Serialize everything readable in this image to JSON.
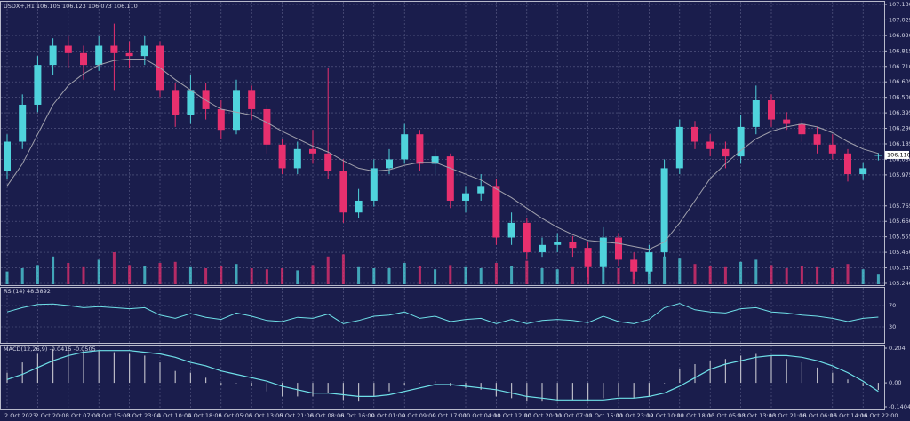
{
  "chart_data": {
    "type": "candlestick",
    "title": "USDX+,H1",
    "header_values": [
      "106.105",
      "106.123",
      "106.073",
      "106.110"
    ],
    "categories": [
      "2 Oct 2023",
      null,
      "2 Oct 20:00",
      null,
      "3 Oct 07:00",
      null,
      "3 Oct 15:00",
      null,
      "3 Oct 23:00",
      null,
      "4 Oct 10:00",
      null,
      "4 Oct 18:00",
      null,
      "5 Oct 05:00",
      null,
      "5 Oct 13:00",
      null,
      "5 Oct 21:00",
      null,
      "6 Oct 08:00",
      null,
      "6 Oct 16:00",
      null,
      "9 Oct 01:00",
      null,
      "9 Oct 09:00",
      null,
      "9 Oct 17:00",
      null,
      "10 Oct 04:00",
      null,
      "10 Oct 12:00",
      null,
      "10 Oct 20:00",
      null,
      "11 Oct 07:00",
      null,
      "11 Oct 15:00",
      null,
      "11 Oct 23:00",
      null,
      "12 Oct 10:00",
      null,
      "12 Oct 18:00",
      null,
      "13 Oct 05:00",
      null,
      "13 Oct 13:00",
      null,
      "13 Oct 21:00",
      null,
      "16 Oct 06:00",
      null,
      "16 Oct 14:00",
      null,
      "16 Oct 22:00",
      null
    ],
    "open": [
      106.0,
      106.2,
      106.45,
      106.72,
      106.85,
      106.8,
      106.72,
      106.85,
      106.8,
      106.78,
      106.85,
      106.55,
      106.38,
      106.55,
      106.42,
      106.28,
      106.55,
      106.42,
      106.18,
      106.02,
      106.15,
      106.12,
      106.0,
      105.72,
      105.8,
      106.02,
      106.08,
      106.25,
      106.05,
      106.1,
      105.8,
      105.85,
      105.9,
      105.55,
      105.65,
      105.45,
      105.5,
      105.52,
      105.48,
      105.35,
      105.55,
      105.4,
      105.32,
      105.45,
      106.02,
      106.3,
      106.2,
      106.15,
      106.1,
      106.3,
      106.48,
      106.35,
      106.32,
      106.25,
      106.18,
      106.12,
      105.98,
      106.105
    ],
    "high": [
      106.25,
      106.52,
      106.78,
      106.9,
      106.92,
      106.85,
      106.92,
      107.0,
      106.88,
      106.92,
      106.88,
      106.6,
      106.65,
      106.6,
      106.48,
      106.62,
      106.58,
      106.45,
      106.22,
      106.2,
      106.28,
      106.7,
      106.08,
      105.88,
      106.08,
      106.15,
      106.32,
      106.28,
      106.15,
      106.12,
      105.9,
      105.98,
      105.95,
      105.72,
      105.68,
      105.55,
      105.58,
      105.56,
      105.52,
      105.62,
      105.58,
      105.45,
      105.5,
      106.08,
      106.35,
      106.34,
      106.25,
      106.2,
      106.38,
      106.58,
      106.52,
      106.4,
      106.35,
      106.3,
      106.25,
      106.15,
      106.06,
      106.123
    ],
    "low": [
      105.95,
      106.15,
      106.4,
      106.65,
      106.7,
      106.62,
      106.68,
      106.55,
      106.7,
      106.72,
      106.5,
      106.3,
      106.32,
      106.35,
      106.22,
      106.25,
      106.35,
      106.12,
      105.98,
      105.98,
      106.05,
      105.95,
      105.65,
      105.68,
      105.76,
      105.98,
      106.05,
      106.0,
      105.98,
      105.75,
      105.72,
      105.8,
      105.5,
      105.5,
      105.4,
      105.42,
      105.45,
      105.42,
      105.28,
      105.32,
      105.36,
      105.27,
      105.3,
      105.42,
      105.98,
      106.15,
      106.1,
      106.02,
      106.05,
      106.25,
      106.3,
      106.28,
      106.2,
      106.12,
      106.08,
      105.93,
      105.94,
      106.073
    ],
    "close": [
      106.2,
      106.45,
      106.72,
      106.85,
      106.8,
      106.72,
      106.85,
      106.8,
      106.78,
      106.85,
      106.55,
      106.38,
      106.55,
      106.42,
      106.28,
      106.55,
      106.42,
      106.18,
      106.02,
      106.15,
      106.12,
      106.0,
      105.72,
      105.8,
      106.02,
      106.08,
      106.25,
      106.05,
      106.1,
      105.8,
      105.85,
      105.9,
      105.55,
      105.65,
      105.45,
      105.5,
      105.52,
      105.48,
      105.35,
      105.55,
      105.4,
      105.32,
      105.45,
      106.02,
      106.3,
      106.2,
      106.15,
      106.1,
      106.3,
      106.48,
      106.35,
      106.32,
      106.25,
      106.18,
      106.12,
      105.98,
      106.02,
      106.11
    ],
    "ma": [
      105.9,
      106.05,
      106.25,
      106.45,
      106.58,
      106.66,
      106.72,
      106.75,
      106.76,
      106.76,
      106.7,
      106.62,
      106.55,
      106.48,
      106.42,
      106.4,
      106.38,
      106.33,
      106.27,
      106.22,
      106.17,
      106.13,
      106.07,
      106.02,
      106.0,
      106.01,
      106.04,
      106.06,
      106.06,
      106.02,
      105.98,
      105.94,
      105.88,
      105.82,
      105.75,
      105.68,
      105.62,
      105.57,
      105.53,
      105.52,
      105.51,
      105.49,
      105.47,
      105.52,
      105.65,
      105.8,
      105.95,
      106.05,
      106.14,
      106.22,
      106.27,
      106.3,
      106.32,
      106.3,
      106.26,
      106.2,
      106.15,
      106.12
    ],
    "volume": [
      120,
      150,
      180,
      260,
      200,
      160,
      230,
      300,
      180,
      170,
      200,
      210,
      160,
      150,
      170,
      190,
      150,
      140,
      150,
      130,
      180,
      260,
      280,
      160,
      150,
      150,
      200,
      170,
      140,
      180,
      160,
      150,
      200,
      170,
      220,
      150,
      140,
      160,
      190,
      210,
      150,
      170,
      200,
      260,
      240,
      190,
      170,
      160,
      210,
      230,
      180,
      150,
      170,
      160,
      150,
      190,
      140,
      90
    ],
    "colors": {
      "up": "#4fd3dc",
      "down": "#e8306e",
      "ma": "#a0a0ac",
      "background": "#1a1d4c",
      "grid": "#5c6088",
      "signal": "#6fe0e8",
      "histogram": "#b8b8c4"
    },
    "ylim": [
      105.24,
      107.13
    ],
    "yticks": [
      {
        "value": 107.13,
        "label": "107.130"
      },
      {
        "value": 107.025,
        "label": "107.025"
      },
      {
        "value": 106.92,
        "label": "106.920"
      },
      {
        "value": 106.815,
        "label": "106.815"
      },
      {
        "value": 106.71,
        "label": "106.710"
      },
      {
        "value": 106.605,
        "label": "106.605"
      },
      {
        "value": 106.5,
        "label": "106.500"
      },
      {
        "value": 106.395,
        "label": "106.395"
      },
      {
        "value": 106.29,
        "label": "106.290"
      },
      {
        "value": 106.185,
        "label": "106.185"
      },
      {
        "value": 106.08,
        "label": "106.080"
      },
      {
        "value": 105.975,
        "label": "105.975"
      },
      {
        "value": 105.765,
        "label": "105.765"
      },
      {
        "value": 105.66,
        "label": "105.660"
      },
      {
        "value": 105.555,
        "label": "105.555"
      },
      {
        "value": 105.45,
        "label": "105.450"
      },
      {
        "value": 105.345,
        "label": "105.345"
      },
      {
        "value": 105.24,
        "label": "105.240"
      }
    ],
    "current_price": {
      "value": 106.11,
      "label": "106.110"
    },
    "grid": true,
    "rsi": {
      "name": "RSI(14)",
      "values": [
        58,
        66,
        72,
        73,
        70,
        66,
        68,
        66,
        64,
        66,
        52,
        46,
        55,
        48,
        44,
        56,
        50,
        42,
        40,
        48,
        46,
        54,
        36,
        42,
        50,
        52,
        58,
        46,
        50,
        40,
        44,
        46,
        36,
        44,
        36,
        42,
        44,
        42,
        38,
        50,
        40,
        36,
        44,
        66,
        74,
        62,
        58,
        56,
        64,
        66,
        58,
        56,
        52,
        50,
        46,
        40,
        46,
        48.3892
      ],
      "ylim": [
        0,
        100
      ],
      "yticks": [
        70,
        30
      ]
    },
    "macd": {
      "name": "MACD(12,26,9)",
      "histogram": [
        0.06,
        0.12,
        0.17,
        0.2,
        0.2,
        0.19,
        0.19,
        0.18,
        0.17,
        0.16,
        0.12,
        0.07,
        0.06,
        0.03,
        -0.01,
        0.0,
        -0.02,
        -0.05,
        -0.08,
        -0.08,
        -0.08,
        -0.06,
        -0.1,
        -0.11,
        -0.08,
        -0.05,
        -0.01,
        0.0,
        0.01,
        -0.02,
        -0.03,
        -0.04,
        -0.08,
        -0.09,
        -0.11,
        -0.11,
        -0.11,
        -0.1,
        -0.11,
        -0.09,
        -0.08,
        -0.09,
        -0.08,
        0.0,
        0.08,
        0.11,
        0.13,
        0.14,
        0.16,
        0.17,
        0.16,
        0.14,
        0.12,
        0.09,
        0.06,
        0.02,
        -0.02,
        -0.0415
      ],
      "signal": [
        0.02,
        0.05,
        0.09,
        0.13,
        0.16,
        0.18,
        0.19,
        0.19,
        0.19,
        0.18,
        0.17,
        0.15,
        0.12,
        0.1,
        0.07,
        0.05,
        0.03,
        0.01,
        -0.02,
        -0.04,
        -0.06,
        -0.06,
        -0.07,
        -0.08,
        -0.08,
        -0.07,
        -0.05,
        -0.03,
        -0.01,
        -0.01,
        -0.02,
        -0.03,
        -0.04,
        -0.06,
        -0.08,
        -0.09,
        -0.1,
        -0.1,
        -0.1,
        -0.1,
        -0.09,
        -0.09,
        -0.08,
        -0.06,
        -0.02,
        0.03,
        0.08,
        0.11,
        0.13,
        0.15,
        0.16,
        0.16,
        0.15,
        0.13,
        0.1,
        0.06,
        0.01,
        -0.0505
      ],
      "ylim": [
        -0.1404,
        0.204
      ],
      "yticks": [
        0.204,
        {
          "value": 0,
          "label": "0.00"
        },
        -0.1404
      ]
    }
  }
}
